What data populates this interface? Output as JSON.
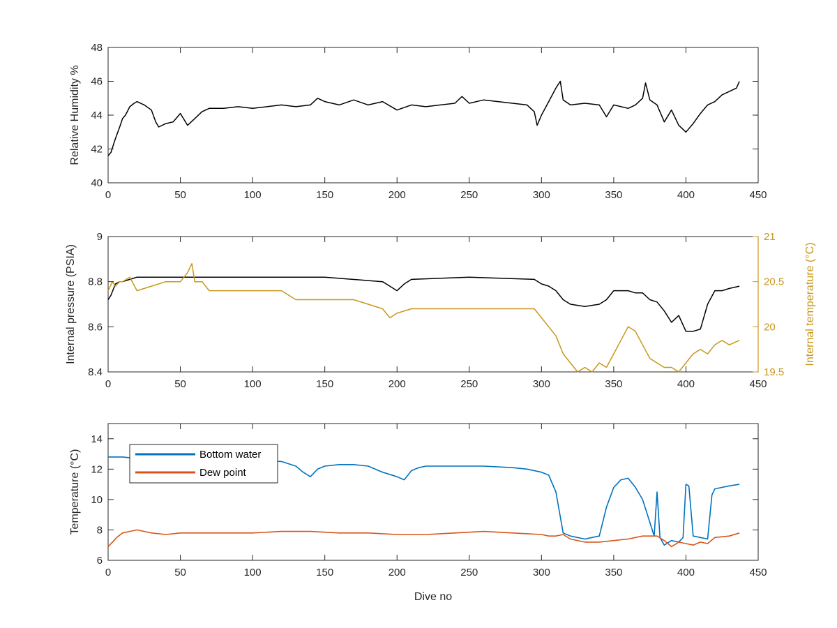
{
  "chart_data": [
    {
      "type": "line",
      "xlabel": "",
      "ylabel": "Relative Humidity %",
      "xlim": [
        0,
        450
      ],
      "ylim": [
        40,
        48
      ],
      "xticks": [
        "0",
        "50",
        "100",
        "150",
        "200",
        "250",
        "300",
        "350",
        "400",
        "450"
      ],
      "yticks": [
        "40",
        "42",
        "44",
        "46",
        "48"
      ],
      "grid": false,
      "series": [
        {
          "color": "#000000",
          "x": [
            0,
            2,
            5,
            8,
            10,
            12,
            15,
            18,
            20,
            25,
            30,
            33,
            35,
            40,
            45,
            50,
            55,
            60,
            65,
            70,
            80,
            90,
            100,
            110,
            120,
            130,
            140,
            145,
            150,
            160,
            170,
            180,
            190,
            200,
            210,
            220,
            230,
            240,
            245,
            250,
            260,
            270,
            280,
            290,
            295,
            297,
            300,
            305,
            310,
            313,
            315,
            320,
            330,
            340,
            345,
            350,
            360,
            365,
            370,
            372,
            375,
            380,
            385,
            390,
            395,
            400,
            405,
            410,
            415,
            420,
            425,
            430,
            435,
            437
          ],
          "y": [
            41.6,
            41.8,
            42.6,
            43.3,
            43.8,
            44.0,
            44.5,
            44.7,
            44.8,
            44.6,
            44.3,
            43.6,
            43.3,
            43.5,
            43.6,
            44.1,
            43.4,
            43.8,
            44.2,
            44.4,
            44.4,
            44.5,
            44.4,
            44.5,
            44.6,
            44.5,
            44.6,
            45.0,
            44.8,
            44.6,
            44.9,
            44.6,
            44.8,
            44.3,
            44.6,
            44.5,
            44.6,
            44.7,
            45.1,
            44.7,
            44.9,
            44.8,
            44.7,
            44.6,
            44.2,
            43.4,
            44.0,
            44.8,
            45.6,
            46.0,
            44.9,
            44.6,
            44.7,
            44.6,
            43.9,
            44.6,
            44.4,
            44.6,
            45.0,
            45.9,
            44.9,
            44.6,
            43.6,
            44.3,
            43.4,
            43.0,
            43.5,
            44.1,
            44.6,
            44.8,
            45.2,
            45.4,
            45.6,
            46.0
          ]
        }
      ]
    },
    {
      "type": "line",
      "xlabel": "",
      "ylabel": "Internal pressure (PSIA)",
      "ylabel_right": "Internal temperature (°C)",
      "xlim": [
        0,
        450
      ],
      "ylim": [
        8.4,
        9
      ],
      "ylim_right": [
        19.5,
        21
      ],
      "xticks": [
        "0",
        "50",
        "100",
        "150",
        "200",
        "250",
        "300",
        "350",
        "400",
        "450"
      ],
      "yticks": [
        "8.4",
        "8.6",
        "8.8",
        "9"
      ],
      "yticks_right": [
        "19.5",
        "20",
        "20.5",
        "21"
      ],
      "grid": false,
      "series": [
        {
          "axis": "left",
          "color": "#000000",
          "x": [
            0,
            2,
            5,
            8,
            10,
            15,
            20,
            30,
            50,
            100,
            150,
            190,
            195,
            200,
            205,
            210,
            250,
            295,
            300,
            305,
            310,
            315,
            320,
            330,
            340,
            345,
            350,
            360,
            365,
            370,
            375,
            380,
            385,
            390,
            395,
            400,
            405,
            410,
            415,
            420,
            425,
            430,
            437
          ],
          "y": [
            8.72,
            8.74,
            8.79,
            8.8,
            8.8,
            8.81,
            8.82,
            8.82,
            8.82,
            8.82,
            8.82,
            8.8,
            8.78,
            8.76,
            8.79,
            8.81,
            8.82,
            8.81,
            8.79,
            8.78,
            8.76,
            8.72,
            8.7,
            8.69,
            8.7,
            8.72,
            8.76,
            8.76,
            8.75,
            8.75,
            8.72,
            8.71,
            8.67,
            8.62,
            8.65,
            8.58,
            8.58,
            8.59,
            8.7,
            8.76,
            8.76,
            8.77,
            8.78
          ]
        },
        {
          "axis": "right",
          "color": "#c8961a",
          "x": [
            0,
            3,
            5,
            8,
            10,
            15,
            20,
            30,
            40,
            50,
            55,
            58,
            60,
            65,
            70,
            80,
            90,
            100,
            110,
            120,
            130,
            140,
            150,
            160,
            170,
            180,
            190,
            195,
            200,
            210,
            220,
            230,
            240,
            250,
            260,
            270,
            280,
            290,
            295,
            300,
            305,
            310,
            315,
            320,
            325,
            330,
            335,
            340,
            345,
            350,
            355,
            360,
            365,
            370,
            375,
            380,
            385,
            390,
            395,
            400,
            405,
            410,
            415,
            420,
            425,
            430,
            437
          ],
          "y": [
            20.4,
            20.5,
            20.45,
            20.5,
            20.5,
            20.55,
            20.4,
            20.45,
            20.5,
            20.5,
            20.6,
            20.7,
            20.5,
            20.5,
            20.4,
            20.4,
            20.4,
            20.4,
            20.4,
            20.4,
            20.3,
            20.3,
            20.3,
            20.3,
            20.3,
            20.25,
            20.2,
            20.1,
            20.15,
            20.2,
            20.2,
            20.2,
            20.2,
            20.2,
            20.2,
            20.2,
            20.2,
            20.2,
            20.2,
            20.1,
            20.0,
            19.9,
            19.7,
            19.6,
            19.5,
            19.55,
            19.5,
            19.6,
            19.55,
            19.7,
            19.85,
            20.0,
            19.95,
            19.8,
            19.65,
            19.6,
            19.55,
            19.55,
            19.5,
            19.6,
            19.7,
            19.75,
            19.7,
            19.8,
            19.85,
            19.8,
            19.85
          ]
        }
      ]
    },
    {
      "type": "line",
      "xlabel": "Dive no",
      "ylabel": "Temperature (°C)",
      "xlim": [
        0,
        450
      ],
      "ylim": [
        6,
        15
      ],
      "xticks": [
        "0",
        "50",
        "100",
        "150",
        "200",
        "250",
        "300",
        "350",
        "400",
        "450"
      ],
      "yticks": [
        "6",
        "8",
        "10",
        "12",
        "14"
      ],
      "grid": false,
      "legend": "top-left",
      "series": [
        {
          "name": "Bottom water",
          "color": "#0072bd",
          "x": [
            0,
            10,
            20,
            30,
            40,
            50,
            60,
            80,
            100,
            120,
            130,
            135,
            140,
            145,
            150,
            160,
            170,
            180,
            190,
            200,
            205,
            210,
            215,
            220,
            240,
            260,
            280,
            290,
            300,
            305,
            310,
            315,
            320,
            330,
            335,
            340,
            345,
            350,
            355,
            360,
            365,
            370,
            375,
            378,
            380,
            382,
            385,
            390,
            395,
            398,
            400,
            402,
            405,
            410,
            415,
            418,
            420,
            430,
            437
          ],
          "y": [
            12.8,
            12.8,
            12.7,
            12.5,
            12.5,
            12.6,
            12.5,
            12.5,
            12.6,
            12.5,
            12.2,
            11.8,
            11.5,
            12.0,
            12.2,
            12.3,
            12.3,
            12.2,
            11.8,
            11.5,
            11.3,
            11.9,
            12.1,
            12.2,
            12.2,
            12.2,
            12.1,
            12.0,
            11.8,
            11.6,
            10.5,
            7.8,
            7.6,
            7.4,
            7.5,
            7.6,
            9.5,
            10.8,
            11.3,
            11.4,
            10.8,
            10.0,
            8.5,
            7.6,
            10.5,
            7.5,
            7.0,
            7.3,
            7.2,
            7.5,
            11.0,
            10.9,
            7.6,
            7.5,
            7.4,
            10.3,
            10.7,
            10.9,
            11.0
          ]
        },
        {
          "name": "Dew point",
          "color": "#d95319",
          "x": [
            0,
            3,
            6,
            10,
            15,
            20,
            25,
            30,
            40,
            50,
            60,
            80,
            100,
            120,
            140,
            160,
            180,
            200,
            220,
            240,
            260,
            280,
            300,
            305,
            310,
            315,
            320,
            330,
            340,
            350,
            360,
            370,
            380,
            385,
            390,
            395,
            400,
            405,
            410,
            415,
            420,
            430,
            437
          ],
          "y": [
            6.9,
            7.2,
            7.5,
            7.8,
            7.9,
            8.0,
            7.9,
            7.8,
            7.7,
            7.8,
            7.8,
            7.8,
            7.8,
            7.9,
            7.9,
            7.8,
            7.8,
            7.7,
            7.7,
            7.8,
            7.9,
            7.8,
            7.7,
            7.6,
            7.6,
            7.7,
            7.4,
            7.2,
            7.2,
            7.3,
            7.4,
            7.6,
            7.6,
            7.3,
            6.9,
            7.2,
            7.1,
            7.0,
            7.2,
            7.1,
            7.5,
            7.6,
            7.8
          ]
        }
      ]
    }
  ]
}
